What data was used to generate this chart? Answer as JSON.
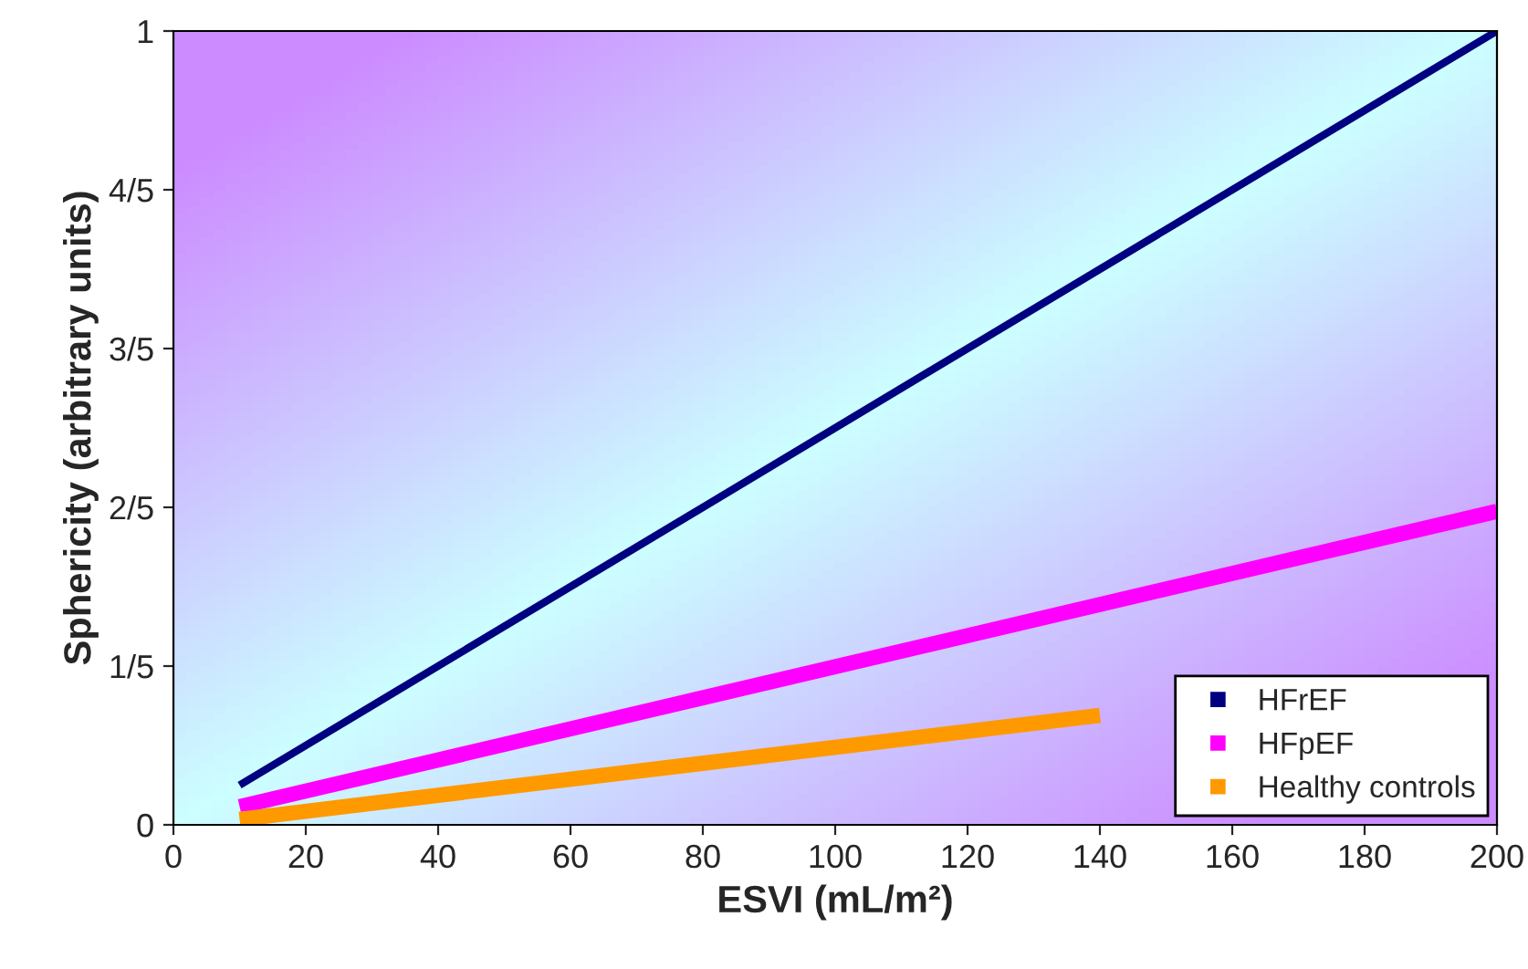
{
  "chart_data": {
    "type": "line",
    "xlabel": "ESVI (mL/m²)",
    "ylabel": "Sphericity (arbitrary units)",
    "xlim": [
      0,
      200
    ],
    "xticks": [
      0,
      20,
      40,
      60,
      80,
      100,
      120,
      140,
      160,
      180,
      200
    ],
    "ylim": [
      0,
      1
    ],
    "yticks": [
      0,
      {
        "value": 0.2,
        "label": "1/5"
      },
      {
        "value": 0.4,
        "label": "2/5"
      },
      {
        "value": 0.6,
        "label": "3/5"
      },
      {
        "value": 0.8,
        "label": "4/5"
      },
      1
    ],
    "series": [
      {
        "name": "HFrEF",
        "color": "#000080",
        "x": [
          10,
          200
        ],
        "values": [
          0.05,
          1.0
        ]
      },
      {
        "name": "HFpEF",
        "color": "#ff00ff",
        "x": [
          10,
          200
        ],
        "values": [
          0.023,
          0.395
        ]
      },
      {
        "name": "Healthy controls",
        "color": "#ff9900",
        "x": [
          10,
          140
        ],
        "values": [
          0.007,
          0.138
        ]
      }
    ],
    "grid": false,
    "legend": "bottom right"
  }
}
